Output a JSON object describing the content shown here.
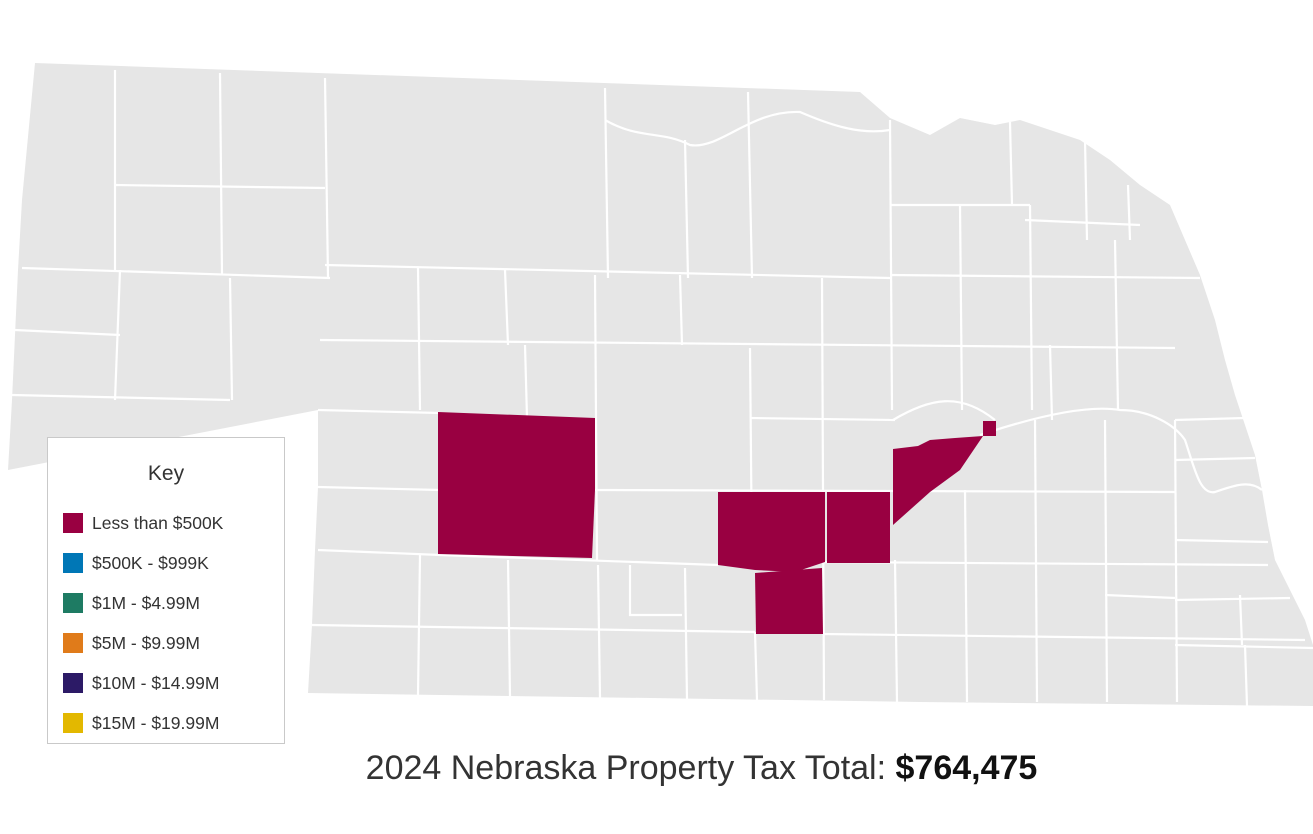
{
  "map": {
    "state": "Nebraska",
    "land_color": "#e6e6e6",
    "border_color": "#ffffff",
    "highlight_color": "#990041",
    "highlighted_county_count": 6
  },
  "legend": {
    "title": "Key",
    "items": [
      {
        "label": "Less than $500K",
        "color": "#990041"
      },
      {
        "label": "$500K - $999K",
        "color": "#0077b6"
      },
      {
        "label": "$1M - $4.99M",
        "color": "#1e7b63"
      },
      {
        "label": "$5M - $9.99M",
        "color": "#e07b1a"
      },
      {
        "label": "$10M - $14.99M",
        "color": "#2c1a66"
      },
      {
        "label": "$15M - $19.99M",
        "color": "#e3b800"
      }
    ]
  },
  "footer": {
    "label": "2024 Nebraska Property Tax Total: ",
    "amount": "$764,475"
  }
}
